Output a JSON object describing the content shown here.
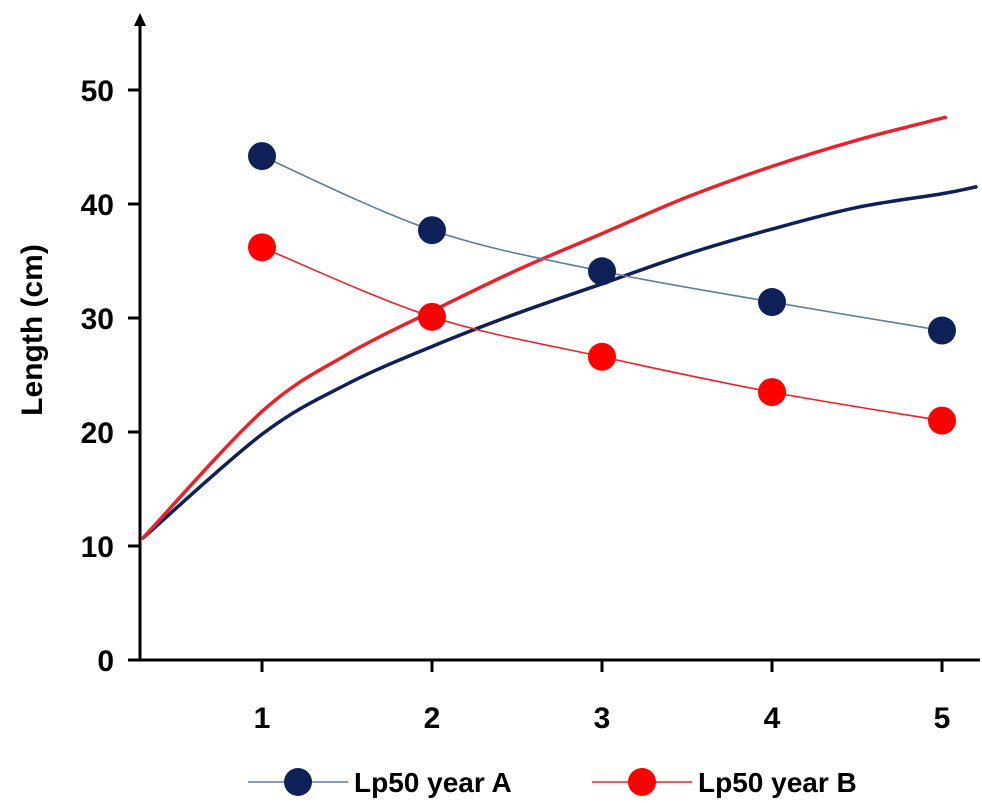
{
  "chart_data": {
    "type": "line",
    "title": "",
    "xlabel": "",
    "ylabel": "Length (cm)",
    "xlim": [
      0.3,
      5.2
    ],
    "ylim": [
      0,
      56
    ],
    "xticks": [
      1,
      2,
      3,
      4,
      5
    ],
    "yticks": [
      0,
      10,
      20,
      30,
      40,
      50
    ],
    "grid": false,
    "legend_position": "bottom",
    "series": [
      {
        "name": "Lp50 year A",
        "kind": "markers+line",
        "color": "#0d2057",
        "line_color": "#5b7d9e",
        "x": [
          1,
          2,
          3,
          4,
          5
        ],
        "y": [
          44.2,
          37.7,
          34.1,
          31.4,
          28.9
        ]
      },
      {
        "name": "Lp50 year B",
        "kind": "markers+line",
        "color": "#ff0000",
        "line_color": "#e8212a",
        "x": [
          1,
          2,
          3,
          4,
          5
        ],
        "y": [
          36.2,
          30.1,
          26.6,
          23.5,
          21.0
        ]
      },
      {
        "kind": "curve",
        "color": "#0d2057",
        "x": [
          0.3,
          1,
          1.5,
          2,
          2.5,
          3,
          3.5,
          4,
          4.5,
          5,
          5.2
        ],
        "y": [
          10.7,
          19.8,
          24.2,
          27.5,
          30.4,
          33.0,
          35.6,
          37.8,
          39.7,
          40.9,
          41.5
        ]
      },
      {
        "kind": "curve",
        "color": "#e8212a",
        "x": [
          0.3,
          1,
          1.5,
          2,
          2.5,
          3,
          3.5,
          4,
          4.5,
          5.02
        ],
        "y": [
          10.7,
          21.8,
          26.8,
          30.6,
          34.2,
          37.4,
          40.6,
          43.3,
          45.6,
          47.6
        ]
      }
    ]
  }
}
